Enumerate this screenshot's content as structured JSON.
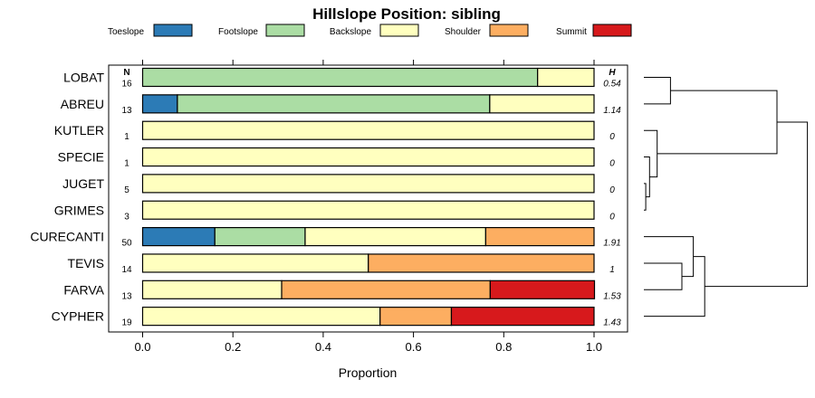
{
  "chart_data": {
    "type": "bar",
    "stacked": true,
    "orientation": "horizontal",
    "title": "Hillslope Position: sibling",
    "xlabel": "Proportion",
    "xlim": [
      0,
      1
    ],
    "xticks": [
      "0.0",
      "0.2",
      "0.4",
      "0.6",
      "0.8",
      "1.0"
    ],
    "n_header": "N",
    "h_header": "H",
    "legend_position": "top",
    "legend": [
      {
        "name": "Toeslope",
        "color": "#2c7bb6"
      },
      {
        "name": "Footslope",
        "color": "#abdda4"
      },
      {
        "name": "Backslope",
        "color": "#ffffbf"
      },
      {
        "name": "Shoulder",
        "color": "#fdae61"
      },
      {
        "name": "Summit",
        "color": "#d7191c"
      }
    ],
    "categories": [
      "LOBAT",
      "ABREU",
      "KUTLER",
      "SPECIE",
      "JUGET",
      "GRIMES",
      "CURECANTI",
      "TEVIS",
      "FARVA",
      "CYPHER"
    ],
    "n": [
      "16",
      "13",
      "1",
      "1",
      "5",
      "3",
      "50",
      "14",
      "13",
      "19"
    ],
    "h": [
      "0.54",
      "1.14",
      "0",
      "0",
      "0",
      "0",
      "1.91",
      "1",
      "1.53",
      "1.43"
    ],
    "series": [
      {
        "name": "Toeslope",
        "values": [
          0,
          0.077,
          0,
          0,
          0,
          0,
          0.16,
          0,
          0,
          0
        ]
      },
      {
        "name": "Footslope",
        "values": [
          0.875,
          0.692,
          0,
          0,
          0,
          0,
          0.2,
          0,
          0,
          0
        ]
      },
      {
        "name": "Backslope",
        "values": [
          0.125,
          0.231,
          1,
          1,
          1,
          1,
          0.4,
          0.5,
          0.308,
          0.526
        ]
      },
      {
        "name": "Shoulder",
        "values": [
          0,
          0,
          0,
          0,
          0,
          0,
          0.24,
          0.5,
          0.462,
          0.158
        ]
      },
      {
        "name": "Summit",
        "values": [
          0,
          0,
          0,
          0,
          0,
          0,
          0,
          0,
          0.231,
          0.316
        ]
      }
    ],
    "dendrogram": {
      "type": "hierarchical clustering",
      "merges": [
        {
          "left": "LOBAT",
          "right": "ABREU",
          "height": 0.07
        },
        {
          "left": "JUGET",
          "right": "GRIMES",
          "height": 0.005
        },
        {
          "left": "SPECIE",
          "right": "JUGET+GRIMES",
          "height": 0.015
        },
        {
          "left": "KUTLER",
          "right": "SPECIE+JUGET+GRIMES",
          "height": 0.035
        },
        {
          "left": "TEVIS",
          "right": "FARVA",
          "height": 0.1
        },
        {
          "left": "CURECANTI",
          "right": "TEVIS+FARVA",
          "height": 0.13
        },
        {
          "left": "CURECANTI+TEVIS+FARVA",
          "right": "CYPHER",
          "height": 0.16
        },
        {
          "left": "LOBAT+ABREU",
          "right": "KUTLER+SPECIE+JUGET+GRIMES",
          "height": 0.35
        },
        {
          "left": "upper",
          "right": "lower",
          "height": 0.43
        }
      ]
    }
  }
}
